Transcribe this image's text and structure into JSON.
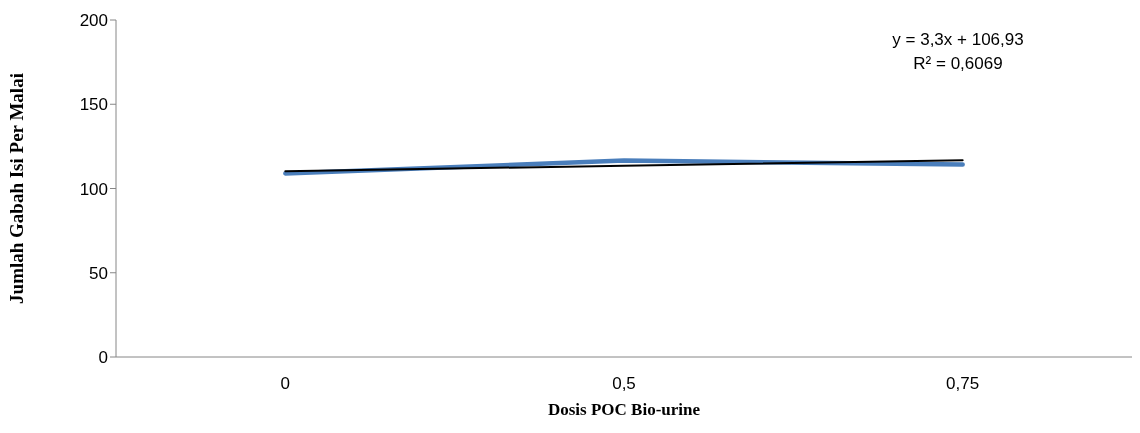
{
  "chart_data": {
    "type": "line",
    "xlabel": "Dosis POC Bio-urine",
    "ylabel": "Jumlah Gabah Isi Per Malai",
    "categories": [
      "0",
      "0,5",
      "0,75"
    ],
    "series": [
      {
        "color": "#4a7ebb",
        "values": [
          108.9,
          116.6,
          114.2
        ]
      },
      {
        "color": "#000000",
        "values": [
          110.2,
          113.5,
          116.8
        ]
      }
    ],
    "ylim": [
      0,
      200
    ],
    "yticks": [
      0,
      50,
      100,
      150,
      200
    ],
    "marker": "none",
    "annotations": [
      "y = 3,3x + 106,93",
      "R² = 0,6069"
    ]
  }
}
